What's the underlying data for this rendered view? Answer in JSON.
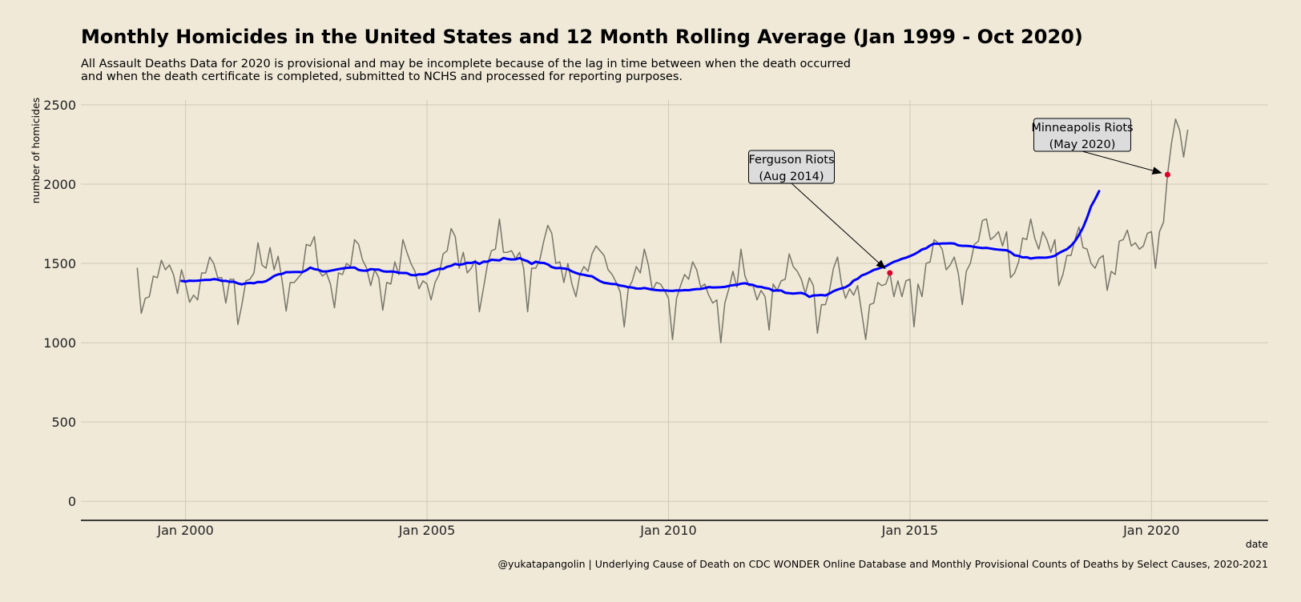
{
  "title": "Monthly Homicides in the United States and 12 Month Rolling Average (Jan 1999 - Oct 2020)",
  "subtitle": [
    "All Assault Deaths Data for 2020 is provisional and may be incomplete because of the lag in time between when the death occurred",
    "and when the death certificate is completed, submitted to NCHS and processed for reporting purposes."
  ],
  "caption": "@yukatapangolin  | Underlying Cause of Death on CDC WONDER Online Database and Monthly Provisional Counts of Deaths by Select Causes, 2020-2021",
  "colors": {
    "background": "#f0e9d8",
    "monthly_line": "#787568",
    "rolling_line": "#0000ff",
    "marker": "#d6002a",
    "grid": "#d0c8b8",
    "annotation_box": "#dcdcdc"
  },
  "chart_data": {
    "type": "line",
    "xlabel": "date",
    "ylabel": "number of homicides",
    "xlim": [
      "1997-11",
      "2022-06"
    ],
    "ylim": [
      -120,
      2530
    ],
    "grid": true,
    "x_ticks": [
      "Jan 2000",
      "Jan 2005",
      "Jan 2010",
      "Jan 2015",
      "Jan 2020"
    ],
    "y_ticks": [
      0,
      500,
      1000,
      1500,
      2000,
      2500
    ],
    "start_month": "1999-01",
    "series": [
      {
        "values": [
          1470,
          1185,
          1280,
          1290,
          1420,
          1410,
          1520,
          1460,
          1490,
          1430,
          1310,
          1460,
          1370,
          1255,
          1300,
          1270,
          1440,
          1440,
          1540,
          1500,
          1410,
          1410,
          1250,
          1400,
          1400,
          1115,
          1240,
          1390,
          1400,
          1440,
          1630,
          1490,
          1470,
          1600,
          1460,
          1545,
          1390,
          1200,
          1380,
          1380,
          1410,
          1440,
          1620,
          1610,
          1670,
          1460,
          1420,
          1440,
          1370,
          1220,
          1440,
          1430,
          1500,
          1480,
          1650,
          1620,
          1520,
          1470,
          1360,
          1460,
          1410,
          1205,
          1380,
          1370,
          1510,
          1430,
          1650,
          1570,
          1500,
          1450,
          1340,
          1390,
          1370,
          1270,
          1380,
          1430,
          1560,
          1580,
          1720,
          1670,
          1470,
          1570,
          1440,
          1470,
          1520,
          1195,
          1340,
          1490,
          1580,
          1590,
          1780,
          1570,
          1570,
          1580,
          1530,
          1570,
          1470,
          1195,
          1470,
          1470,
          1520,
          1640,
          1740,
          1690,
          1500,
          1510,
          1380,
          1500,
          1370,
          1290,
          1430,
          1480,
          1450,
          1560,
          1610,
          1580,
          1550,
          1460,
          1430,
          1380,
          1320,
          1100,
          1340,
          1390,
          1480,
          1440,
          1590,
          1490,
          1330,
          1380,
          1370,
          1330,
          1280,
          1020,
          1280,
          1360,
          1430,
          1400,
          1510,
          1460,
          1350,
          1370,
          1300,
          1250,
          1270,
          1000,
          1250,
          1340,
          1450,
          1350,
          1590,
          1420,
          1360,
          1360,
          1270,
          1330,
          1290,
          1080,
          1370,
          1330,
          1390,
          1400,
          1560,
          1480,
          1450,
          1400,
          1310,
          1410,
          1360,
          1060,
          1240,
          1240,
          1330,
          1470,
          1540,
          1370,
          1280,
          1340,
          1300,
          1360,
          1190,
          1020,
          1240,
          1250,
          1380,
          1360,
          1370,
          1440,
          1290,
          1390,
          1290,
          1390,
          1400,
          1100,
          1370,
          1290,
          1500,
          1510,
          1650,
          1630,
          1590,
          1460,
          1490,
          1540,
          1440,
          1240,
          1450,
          1500,
          1620,
          1640,
          1770,
          1780,
          1650,
          1670,
          1700,
          1610,
          1700,
          1410,
          1440,
          1510,
          1660,
          1650,
          1780,
          1660,
          1590,
          1700,
          1650,
          1570,
          1650,
          1360,
          1430,
          1550,
          1550,
          1650,
          1730,
          1600,
          1590,
          1500,
          1470,
          1530,
          1550,
          1330,
          1450,
          1430,
          1640,
          1650,
          1710,
          1610,
          1630,
          1590,
          1610,
          1690,
          1700,
          1470,
          1700,
          1760,
          2060,
          2260,
          2410,
          2340,
          2170,
          2340
        ]
      },
      {
        "start_month": "1999-12",
        "values": [
          1390,
          1386,
          1391,
          1390,
          1391,
          1394,
          1396,
          1396,
          1401,
          1398,
          1390,
          1390,
          1384,
          1385,
          1374,
          1368,
          1375,
          1377,
          1375,
          1383,
          1382,
          1388,
          1403,
          1421,
          1431,
          1434,
          1445,
          1445,
          1446,
          1446,
          1445,
          1457,
          1474,
          1464,
          1460,
          1450,
          1449,
          1454,
          1459,
          1464,
          1468,
          1472,
          1474,
          1474,
          1459,
          1455,
          1454,
          1464,
          1462,
          1461,
          1451,
          1448,
          1449,
          1447,
          1441,
          1440,
          1439,
          1427,
          1425,
          1431,
          1431,
          1436,
          1451,
          1458,
          1466,
          1465,
          1479,
          1485,
          1497,
          1491,
          1496,
          1504,
          1503,
          1509,
          1497,
          1511,
          1511,
          1523,
          1521,
          1519,
          1534,
          1528,
          1525,
          1526,
          1534,
          1522,
          1514,
          1497,
          1511,
          1504,
          1503,
          1494,
          1477,
          1470,
          1471,
          1468,
          1464,
          1450,
          1440,
          1432,
          1428,
          1422,
          1419,
          1403,
          1388,
          1378,
          1374,
          1370,
          1369,
          1360,
          1357,
          1350,
          1348,
          1342,
          1341,
          1345,
          1340,
          1335,
          1332,
          1330,
          1330,
          1328,
          1327,
          1330,
          1329,
          1332,
          1331,
          1335,
          1338,
          1339,
          1344,
          1351,
          1348,
          1349,
          1350,
          1352,
          1358,
          1363,
          1365,
          1372,
          1375,
          1368,
          1364,
          1354,
          1352,
          1345,
          1341,
          1328,
          1330,
          1329,
          1315,
          1312,
          1310,
          1312,
          1314,
          1306,
          1289,
          1298,
          1299,
          1301,
          1298,
          1310,
          1325,
          1335,
          1343,
          1350,
          1365,
          1392,
          1403,
          1424,
          1433,
          1445,
          1459,
          1466,
          1475,
          1482,
          1497,
          1510,
          1518,
          1529,
          1536,
          1546,
          1557,
          1571,
          1588,
          1595,
          1613,
          1625,
          1623,
          1626,
          1626,
          1627,
          1625,
          1614,
          1611,
          1611,
          1609,
          1604,
          1600,
          1597,
          1598,
          1594,
          1590,
          1587,
          1585,
          1583,
          1571,
          1551,
          1547,
          1538,
          1539,
          1531,
          1535,
          1537,
          1536,
          1537,
          1541,
          1548,
          1565,
          1578,
          1590,
          1611,
          1640,
          1680,
          1726,
          1788,
          1860,
          1905,
          1956
        ]
      }
    ],
    "annotations": [
      {
        "label": [
          "Ferguson Riots",
          "(Aug 2014)"
        ],
        "month": "2014-08",
        "value": 1440
      },
      {
        "label": [
          "Minneapolis Riots",
          "(May 2020)"
        ],
        "month": "2020-05",
        "value": 2060
      }
    ]
  }
}
